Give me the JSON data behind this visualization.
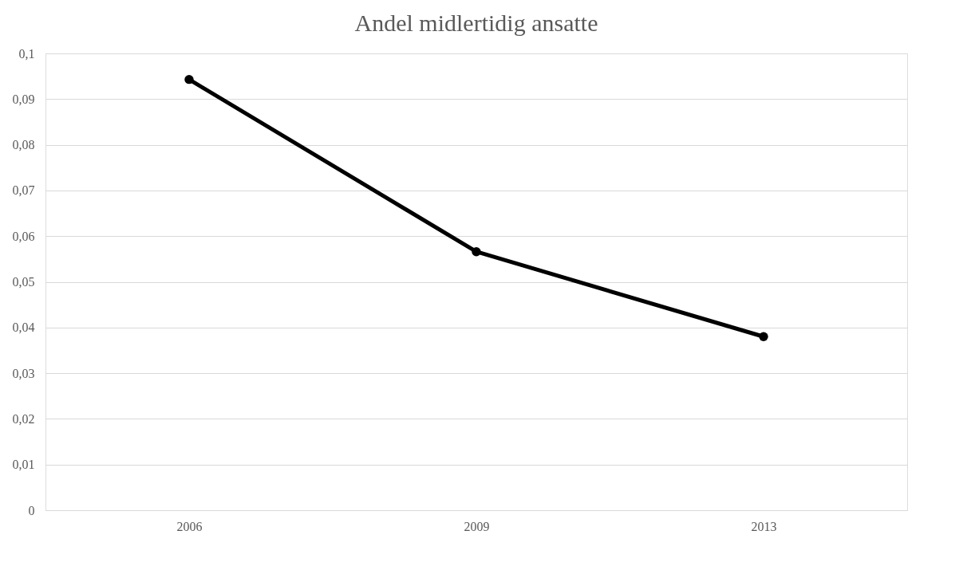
{
  "chart_data": {
    "type": "line",
    "title": "Andel midlertidig ansatte",
    "categories": [
      "2006",
      "2009",
      "2013"
    ],
    "series": [
      {
        "color": "#000000",
        "values": [
          0.0943,
          0.0566,
          0.038
        ]
      }
    ],
    "ylim": [
      0,
      0.1
    ],
    "yticks": [
      0,
      {
        "value": 0.01,
        "label": "0,01"
      },
      {
        "value": 0.02,
        "label": "0,02"
      },
      {
        "value": 0.03,
        "label": "0,03"
      },
      {
        "value": 0.04,
        "label": "0,04"
      },
      {
        "value": 0.05,
        "label": "0,05"
      },
      {
        "value": 0.06,
        "label": "0,06"
      },
      {
        "value": 0.07,
        "label": "0,07"
      },
      {
        "value": 0.08,
        "label": "0,08"
      },
      {
        "value": 0.09,
        "label": "0,09"
      },
      {
        "value": 0.1,
        "label": "0,1"
      }
    ],
    "grid": "y",
    "marker": "circle",
    "line_style": "solid"
  }
}
